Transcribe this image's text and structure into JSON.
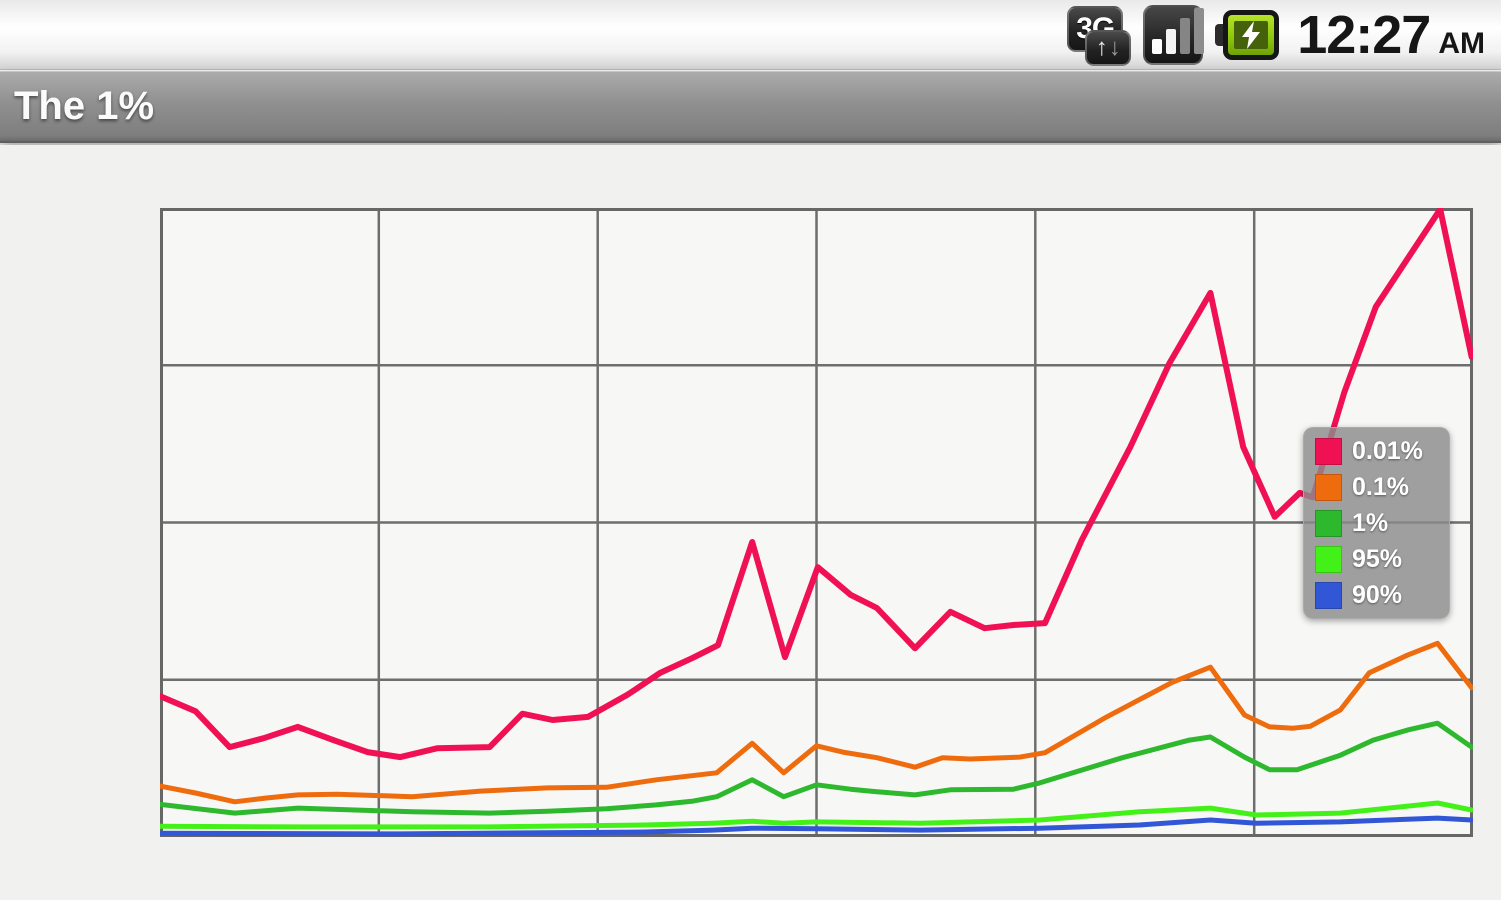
{
  "status_bar": {
    "data_badge": "3G",
    "arrow_up": "↑",
    "arrow_down": "↓",
    "time": "12:27",
    "meridiem": "AM",
    "icons": [
      "mobile-data-3g-icon",
      "signal-strength-icon",
      "battery-charging-icon"
    ]
  },
  "title_bar": {
    "title": "The 1%"
  },
  "chart_data": {
    "type": "line",
    "title": "",
    "xlabel": "",
    "ylabel": "",
    "axis_tick_labels_visible": false,
    "grid": {
      "on": true,
      "columns": 6,
      "rows": 4,
      "line_color": "#6e6e6e",
      "border_color": "#676767"
    },
    "plot_background": "#f7f7f6",
    "value_scale_note": "no axis labels shown; y values are fraction of plot height (0=bottom, 1=top), x is fraction of plot width",
    "legend": {
      "position": "inside-right",
      "background": "#8b8b8b"
    },
    "series": [
      {
        "name": "90%",
        "color": "#3156d6",
        "points": [
          [
            0.0,
            0.006
          ],
          [
            0.183,
            0.005
          ],
          [
            0.369,
            0.008
          ],
          [
            0.421,
            0.011
          ],
          [
            0.451,
            0.014
          ],
          [
            0.5,
            0.013
          ],
          [
            0.579,
            0.011
          ],
          [
            0.67,
            0.014
          ],
          [
            0.746,
            0.019
          ],
          [
            0.8,
            0.027
          ],
          [
            0.835,
            0.022
          ],
          [
            0.899,
            0.024
          ],
          [
            0.973,
            0.03
          ],
          [
            0.999,
            0.027
          ]
        ]
      },
      {
        "name": "95%",
        "color": "#43f119",
        "points": [
          [
            0.0,
            0.017
          ],
          [
            0.107,
            0.016
          ],
          [
            0.251,
            0.016
          ],
          [
            0.369,
            0.019
          ],
          [
            0.421,
            0.022
          ],
          [
            0.451,
            0.025
          ],
          [
            0.475,
            0.022
          ],
          [
            0.5,
            0.024
          ],
          [
            0.579,
            0.022
          ],
          [
            0.67,
            0.027
          ],
          [
            0.746,
            0.04
          ],
          [
            0.8,
            0.046
          ],
          [
            0.835,
            0.035
          ],
          [
            0.899,
            0.038
          ],
          [
            0.973,
            0.054
          ],
          [
            0.999,
            0.043
          ]
        ]
      },
      {
        "name": "1%",
        "color": "#2eb82e",
        "points": [
          [
            0.0,
            0.052
          ],
          [
            0.057,
            0.038
          ],
          [
            0.105,
            0.046
          ],
          [
            0.192,
            0.04
          ],
          [
            0.251,
            0.038
          ],
          [
            0.295,
            0.041
          ],
          [
            0.34,
            0.045
          ],
          [
            0.378,
            0.051
          ],
          [
            0.406,
            0.057
          ],
          [
            0.424,
            0.064
          ],
          [
            0.451,
            0.091
          ],
          [
            0.475,
            0.064
          ],
          [
            0.5,
            0.083
          ],
          [
            0.526,
            0.076
          ],
          [
            0.546,
            0.072
          ],
          [
            0.575,
            0.067
          ],
          [
            0.602,
            0.075
          ],
          [
            0.65,
            0.076
          ],
          [
            0.67,
            0.086
          ],
          [
            0.733,
            0.126
          ],
          [
            0.784,
            0.154
          ],
          [
            0.8,
            0.159
          ],
          [
            0.826,
            0.127
          ],
          [
            0.845,
            0.107
          ],
          [
            0.866,
            0.107
          ],
          [
            0.899,
            0.13
          ],
          [
            0.924,
            0.154
          ],
          [
            0.95,
            0.17
          ],
          [
            0.973,
            0.181
          ],
          [
            0.999,
            0.143
          ]
        ]
      },
      {
        "name": "0.1%",
        "color": "#ee6c0e",
        "points": [
          [
            0.0,
            0.081
          ],
          [
            0.027,
            0.07
          ],
          [
            0.057,
            0.056
          ],
          [
            0.081,
            0.062
          ],
          [
            0.105,
            0.067
          ],
          [
            0.135,
            0.068
          ],
          [
            0.192,
            0.064
          ],
          [
            0.244,
            0.073
          ],
          [
            0.295,
            0.078
          ],
          [
            0.34,
            0.079
          ],
          [
            0.378,
            0.091
          ],
          [
            0.424,
            0.102
          ],
          [
            0.451,
            0.149
          ],
          [
            0.475,
            0.102
          ],
          [
            0.5,
            0.145
          ],
          [
            0.52,
            0.135
          ],
          [
            0.546,
            0.126
          ],
          [
            0.575,
            0.111
          ],
          [
            0.596,
            0.126
          ],
          [
            0.617,
            0.124
          ],
          [
            0.655,
            0.127
          ],
          [
            0.674,
            0.134
          ],
          [
            0.721,
            0.191
          ],
          [
            0.771,
            0.246
          ],
          [
            0.8,
            0.27
          ],
          [
            0.826,
            0.194
          ],
          [
            0.845,
            0.175
          ],
          [
            0.863,
            0.173
          ],
          [
            0.876,
            0.176
          ],
          [
            0.899,
            0.202
          ],
          [
            0.921,
            0.261
          ],
          [
            0.95,
            0.289
          ],
          [
            0.973,
            0.308
          ],
          [
            0.999,
            0.237
          ]
        ]
      },
      {
        "name": "0.01%",
        "color": "#f01155",
        "points": [
          [
            0.0,
            0.224
          ],
          [
            0.027,
            0.2
          ],
          [
            0.053,
            0.143
          ],
          [
            0.079,
            0.157
          ],
          [
            0.105,
            0.175
          ],
          [
            0.132,
            0.154
          ],
          [
            0.158,
            0.135
          ],
          [
            0.183,
            0.127
          ],
          [
            0.211,
            0.141
          ],
          [
            0.251,
            0.143
          ],
          [
            0.276,
            0.196
          ],
          [
            0.299,
            0.186
          ],
          [
            0.326,
            0.191
          ],
          [
            0.356,
            0.226
          ],
          [
            0.381,
            0.261
          ],
          [
            0.406,
            0.285
          ],
          [
            0.425,
            0.305
          ],
          [
            0.451,
            0.469
          ],
          [
            0.476,
            0.286
          ],
          [
            0.501,
            0.429
          ],
          [
            0.526,
            0.385
          ],
          [
            0.546,
            0.364
          ],
          [
            0.575,
            0.3
          ],
          [
            0.602,
            0.358
          ],
          [
            0.628,
            0.332
          ],
          [
            0.65,
            0.337
          ],
          [
            0.674,
            0.34
          ],
          [
            0.702,
            0.472
          ],
          [
            0.739,
            0.62
          ],
          [
            0.769,
            0.754
          ],
          [
            0.8,
            0.865
          ],
          [
            0.825,
            0.62
          ],
          [
            0.849,
            0.509
          ],
          [
            0.868,
            0.547
          ],
          [
            0.878,
            0.54
          ],
          [
            0.902,
            0.707
          ],
          [
            0.926,
            0.843
          ],
          [
            0.975,
            0.998
          ],
          [
            0.999,
            0.763
          ]
        ]
      }
    ],
    "legend_order": [
      "0.01%",
      "0.1%",
      "1%",
      "95%",
      "90%"
    ]
  }
}
